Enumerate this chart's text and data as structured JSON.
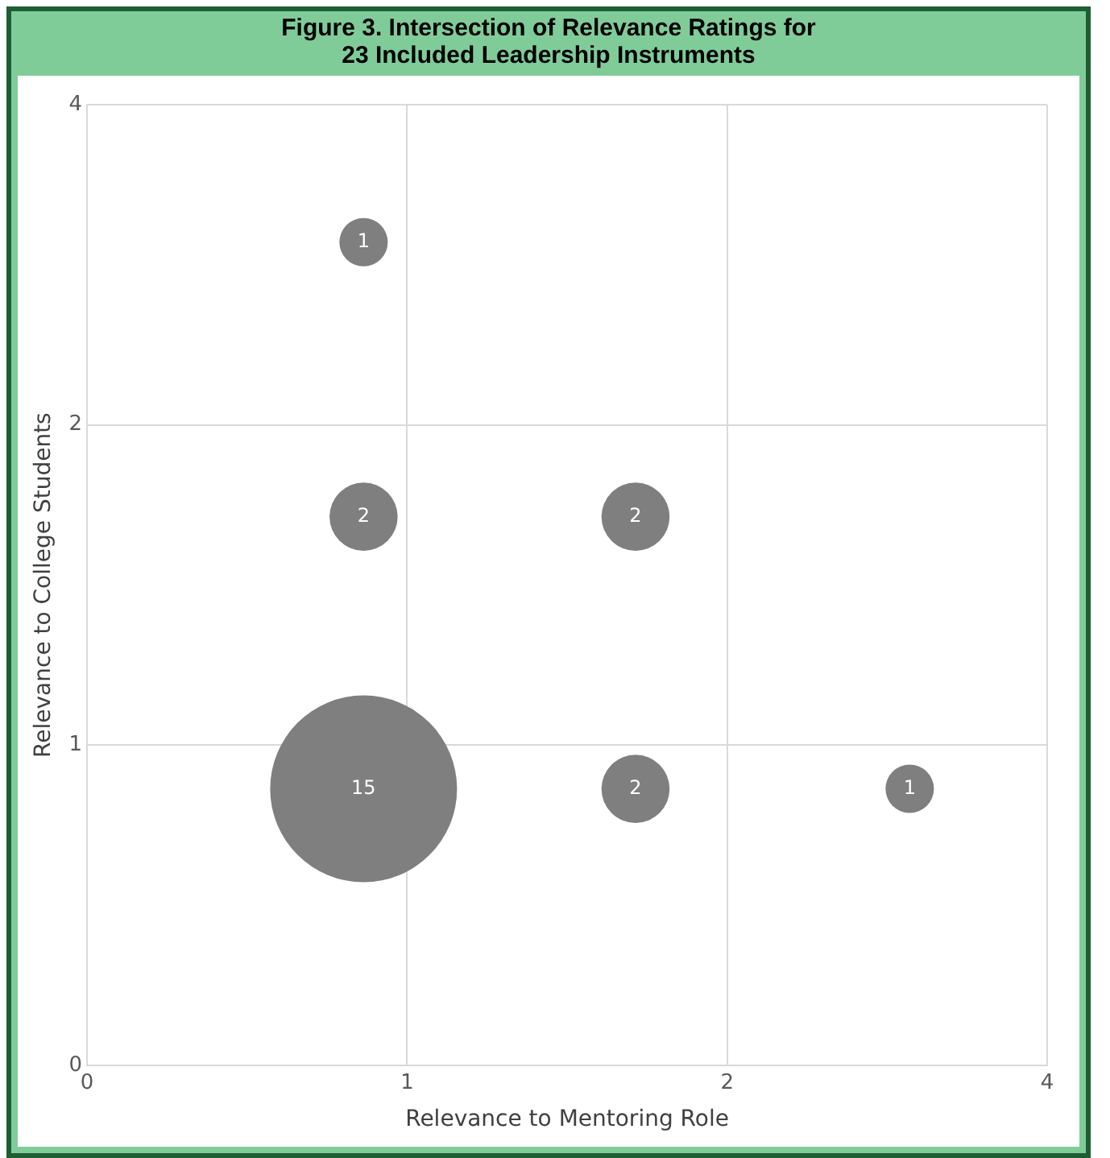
{
  "chart_data": {
    "type": "bubble",
    "title": "Figure 3. Intersection of Relevance Ratings for\n23 Included Leadership Instruments",
    "xlabel": "Relevance to Mentoring Role",
    "ylabel": "Relevance to College Students",
    "log": "xy",
    "xlim": [
      0.5,
      4
    ],
    "xticks": [
      {
        "value": 0.5,
        "label": "0"
      },
      1,
      2,
      4
    ],
    "ylim": [
      0.5,
      4
    ],
    "yticks": [
      {
        "value": 0.5,
        "label": "0"
      },
      1,
      2,
      4
    ],
    "grid": true,
    "legend": false,
    "series": [
      {
        "color": "#7f7f7f",
        "x": [
          0.91,
          0.91,
          1.64,
          0.91,
          1.64,
          2.97
        ],
        "values": [
          2.97,
          1.64,
          1.64,
          0.91,
          0.91,
          0.91
        ],
        "sizes": [
          0.067,
          0.133,
          0.133,
          1,
          0.133,
          0.067
        ]
      }
    ],
    "annotations": [
      {
        "text": "1",
        "x": 0.91,
        "y": 2.97
      },
      {
        "text": "2",
        "x": 0.91,
        "y": 1.64
      },
      {
        "text": "2",
        "x": 1.64,
        "y": 1.64
      },
      {
        "text": "15",
        "x": 0.91,
        "y": 0.91
      },
      {
        "text": "2",
        "x": 1.64,
        "y": 0.91
      },
      {
        "text": "1",
        "x": 2.97,
        "y": 0.91
      }
    ]
  }
}
